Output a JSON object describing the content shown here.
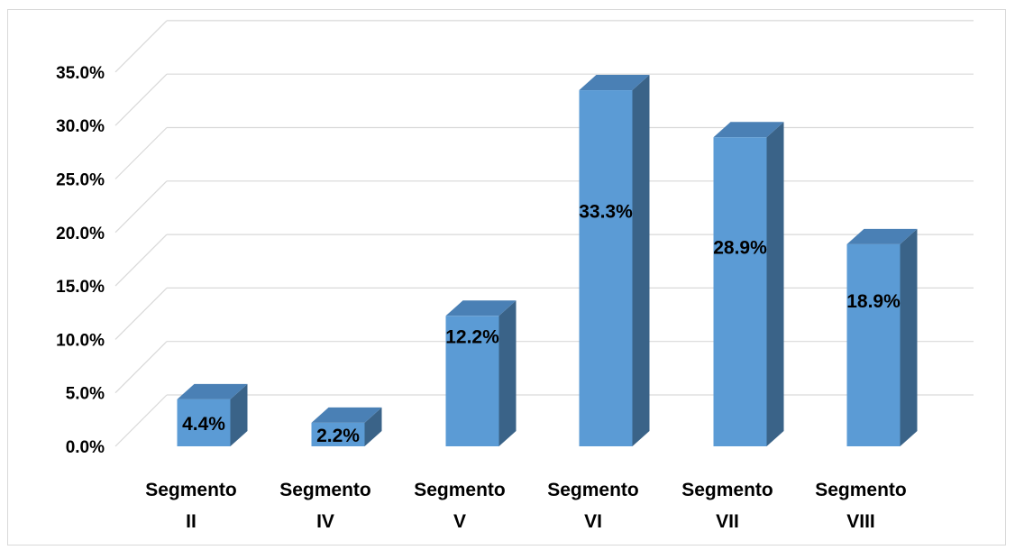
{
  "chart_data": {
    "type": "bar",
    "categories": [
      [
        "Segmento",
        "II"
      ],
      [
        "Segmento",
        "IV"
      ],
      [
        "Segmento",
        "V"
      ],
      [
        "Segmento",
        "VI"
      ],
      [
        "Segmento",
        "VII"
      ],
      [
        "Segmento",
        "VIII"
      ]
    ],
    "values": [
      4.4,
      2.2,
      12.2,
      33.3,
      28.9,
      18.9
    ],
    "data_labels": [
      "4.4%",
      "2.2%",
      "12.2%",
      "33.3%",
      "28.9%",
      "18.9%"
    ],
    "y_ticks": [
      "0.0%",
      "5.0%",
      "10.0%",
      "15.0%",
      "20.0%",
      "25.0%",
      "30.0%",
      "35.0%"
    ],
    "ylim": [
      0,
      35
    ],
    "title": "",
    "xlabel": "",
    "ylabel": "",
    "grid": true,
    "legend": "none",
    "style": "3d-column",
    "colors": {
      "bar_front": "#5b9bd5",
      "bar_side": "#3a6388",
      "bar_top": "#4a80b5",
      "grid": "#d9d9d9"
    }
  }
}
